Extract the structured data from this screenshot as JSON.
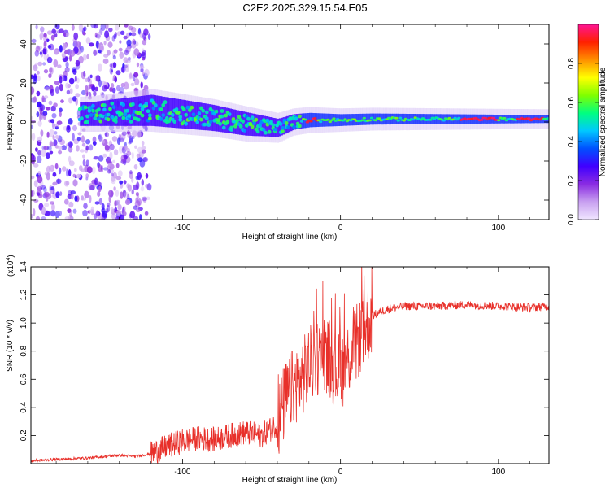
{
  "title": "C2E2.2025.329.15.54.E05",
  "chart_data": [
    {
      "type": "heatmap",
      "name": "spectrogram",
      "xlabel": "Height of straight line (km)",
      "ylabel": "Frequency (Hz)",
      "xlim": [
        -196,
        132
      ],
      "ylim": [
        -50,
        50
      ],
      "xticks": [
        -100,
        0,
        100
      ],
      "yticks": [
        40,
        20,
        0,
        -20,
        -40
      ],
      "colorbar": {
        "label": "Normalized spectral amplitude",
        "range": [
          0.0,
          1.0
        ],
        "ticks": [
          0.0,
          0.2,
          0.4,
          0.6,
          0.8
        ],
        "colormap": [
          "#f0e6ff",
          "#c8a0f0",
          "#8a2be2",
          "#4000ff",
          "#0050ff",
          "#00c8ff",
          "#00ff80",
          "#7fff00",
          "#ffff00",
          "#ff9000",
          "#ff2000",
          "#ff1493"
        ]
      },
      "description_points": {
        "center_freq_hz": [
          [
            -160,
            4
          ],
          [
            -120,
            6
          ],
          [
            -100,
            4
          ],
          [
            -80,
            2
          ],
          [
            -60,
            -1
          ],
          [
            -40,
            -3
          ],
          [
            -30,
            0
          ],
          [
            -20,
            1
          ],
          [
            0,
            1
          ],
          [
            20,
            1.5
          ],
          [
            80,
            1.5
          ],
          [
            132,
            1.5
          ]
        ],
        "band_halfwidth_hz": [
          [
            -160,
            6
          ],
          [
            -120,
            8
          ],
          [
            -60,
            6
          ],
          [
            -30,
            4
          ],
          [
            0,
            3
          ],
          [
            132,
            2
          ]
        ]
      }
    },
    {
      "type": "line",
      "name": "snr",
      "xlabel": "Height of straight line (km)",
      "ylabel": "SNR (10 * v/v)",
      "y_multiplier": "(x10",
      "y_multiplier_exp": "4",
      "y_multiplier_close": ")",
      "xlim": [
        -196,
        132
      ],
      "ylim": [
        0,
        1.4
      ],
      "xticks": [
        -100,
        0,
        100
      ],
      "yticks": [
        0.2,
        0.4,
        0.6,
        0.8,
        1.0,
        1.2,
        1.4
      ],
      "color": "#e8302a",
      "x": [
        -196,
        -180,
        -160,
        -140,
        -130,
        -120,
        -110,
        -100,
        -90,
        -80,
        -70,
        -60,
        -50,
        -40,
        -35,
        -30,
        -25,
        -20,
        -15,
        -10,
        -5,
        0,
        5,
        10,
        15,
        20,
        25,
        30,
        40,
        60,
        80,
        100,
        120,
        132
      ],
      "y": [
        0.02,
        0.03,
        0.04,
        0.06,
        0.05,
        0.07,
        0.12,
        0.16,
        0.18,
        0.17,
        0.2,
        0.22,
        0.2,
        0.28,
        0.45,
        0.55,
        0.6,
        0.7,
        0.75,
        0.8,
        0.7,
        0.65,
        0.75,
        0.85,
        0.95,
        1.05,
        1.08,
        1.1,
        1.12,
        1.12,
        1.13,
        1.12,
        1.11,
        1.12
      ]
    }
  ]
}
